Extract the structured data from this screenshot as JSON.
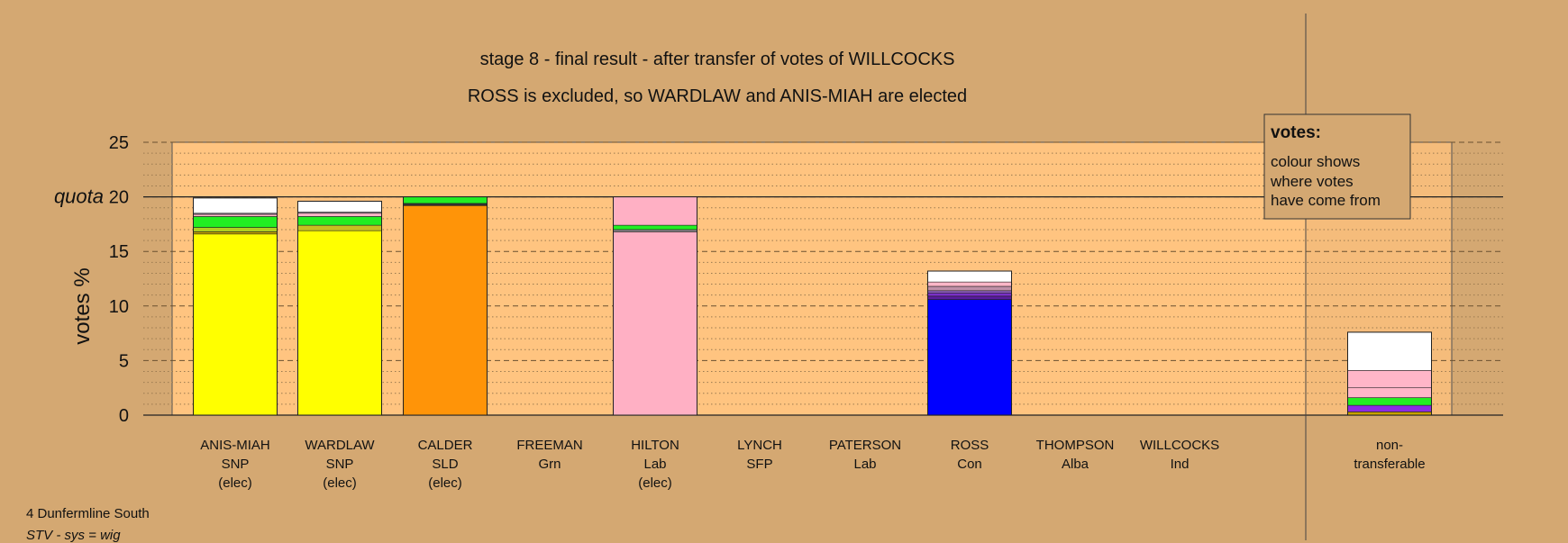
{
  "chart_data": {
    "type": "bar",
    "stacked": true,
    "title": "stage 8 - final result - after transfer of votes of WILLCOCKS",
    "subtitle": "ROSS is excluded, so WARDLAW and ANIS-MIAH are elected",
    "ylabel": "votes %",
    "ylim": [
      0,
      25
    ],
    "yticks": [
      "0",
      "5",
      "10",
      "15",
      "20",
      "25"
    ],
    "quota_label": "quota",
    "quota": 20,
    "grid": true,
    "legend": {
      "placement": "top-right",
      "title": "votes:",
      "lines": [
        "colour shows",
        "where votes",
        "have come from"
      ]
    },
    "categories": [
      {
        "lines": [
          "ANIS-MIAH",
          "SNP",
          "(elec)"
        ],
        "segments": [
          {
            "color": "#FFFF00",
            "value": 16.6
          },
          {
            "color": "#C8A800",
            "value": 0.2
          },
          {
            "color": "#B0D020",
            "value": 0.4
          },
          {
            "color": "#22EE22",
            "value": 1.0
          },
          {
            "color": "#FFB6C8",
            "value": 0.2
          },
          {
            "color": "#A080A0",
            "value": 0.1
          },
          {
            "color": "#FFFFFF",
            "value": 1.4
          }
        ]
      },
      {
        "lines": [
          "WARDLAW",
          "SNP",
          "(elec)"
        ],
        "segments": [
          {
            "color": "#FFFF00",
            "value": 16.9
          },
          {
            "color": "#C8C020",
            "value": 0.5
          },
          {
            "color": "#22EE22",
            "value": 0.8
          },
          {
            "color": "#FFB6C8",
            "value": 0.3
          },
          {
            "color": "#A080A0",
            "value": 0.1
          },
          {
            "color": "#FFFFFF",
            "value": 1.0
          }
        ]
      },
      {
        "lines": [
          "CALDER",
          "SLD",
          "(elec)"
        ],
        "segments": [
          {
            "color": "#FF9408",
            "value": 19.2
          },
          {
            "color": "#333333",
            "value": 0.2
          },
          {
            "color": "#22EE22",
            "value": 0.6
          }
        ]
      },
      {
        "lines": [
          "FREEMAN",
          "Grn"
        ],
        "segments": []
      },
      {
        "lines": [
          "HILTON",
          "Lab",
          "(elec)"
        ],
        "segments": [
          {
            "color": "#FFB0C4",
            "value": 16.8
          },
          {
            "color": "#888888",
            "value": 0.2
          },
          {
            "color": "#22EE22",
            "value": 0.4
          },
          {
            "color": "#FFB0C4",
            "value": 2.6
          }
        ]
      },
      {
        "lines": [
          "LYNCH",
          "SFP"
        ],
        "segments": []
      },
      {
        "lines": [
          "PATERSON",
          "Lab"
        ],
        "segments": []
      },
      {
        "lines": [
          "ROSS",
          "Con"
        ],
        "segments": [
          {
            "color": "#0000FF",
            "value": 10.6
          },
          {
            "color": "#5A1AA0",
            "value": 0.3
          },
          {
            "color": "#7A30C8",
            "value": 0.3
          },
          {
            "color": "#9060C0",
            "value": 0.2
          },
          {
            "color": "#C090A8",
            "value": 0.4
          },
          {
            "color": "#FFB6C8",
            "value": 0.4
          },
          {
            "color": "#FFFFFF",
            "value": 1.0
          }
        ]
      },
      {
        "lines": [
          "THOMPSON",
          "Alba"
        ],
        "segments": []
      },
      {
        "lines": [
          "WILLCOCKS",
          "Ind"
        ],
        "segments": []
      },
      {
        "lines": [
          "non-",
          "transferable"
        ],
        "segments": [
          {
            "color": "#C8A000",
            "value": 0.3
          },
          {
            "color": "#8A2BE2",
            "value": 0.6
          },
          {
            "color": "#22EE22",
            "value": 0.7
          },
          {
            "color": "#FFB6C8",
            "value": 0.9
          },
          {
            "color": "#FFB6C8",
            "value": 1.6
          },
          {
            "color": "#FFFFFF",
            "value": 3.5
          }
        ]
      }
    ]
  },
  "footer": {
    "ward": "4 Dunfermline South",
    "system": "STV - sys = wig"
  }
}
